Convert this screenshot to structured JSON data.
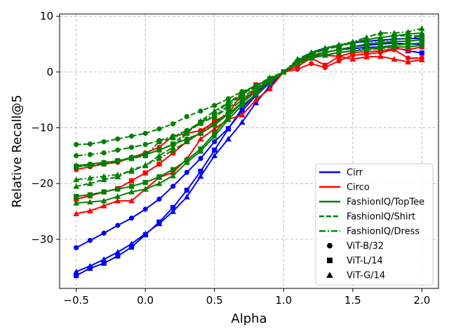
{
  "chart_data": {
    "type": "line",
    "title": "",
    "xlabel": "Alpha",
    "ylabel": "Relative Recall@5",
    "xlim": [
      -0.62,
      2.12
    ],
    "ylim": [
      -38.8,
      10.4
    ],
    "xticks": [
      -0.5,
      0.0,
      0.5,
      1.0,
      1.5,
      2.0
    ],
    "xtick_labels": [
      "−0.5",
      "0.0",
      "0.5",
      "1.0",
      "1.5",
      "2.0"
    ],
    "yticks": [
      -30,
      -20,
      -10,
      0,
      10
    ],
    "ytick_labels": [
      "−30",
      "−20",
      "−10",
      "0",
      "10"
    ],
    "grid": true,
    "legend_position": "lower-right",
    "x": [
      -0.5,
      -0.4,
      -0.3,
      -0.2,
      -0.1,
      0.0,
      0.1,
      0.2,
      0.3,
      0.4,
      0.5,
      0.6,
      0.7,
      0.8,
      0.9,
      1.0,
      1.1,
      1.2,
      1.3,
      1.4,
      1.5,
      1.6,
      1.7,
      1.8,
      1.9,
      2.0
    ],
    "colors": {
      "Cirr": "#0000ff",
      "Circo": "#ff0000",
      "FashionIQ": "#008000"
    },
    "legend": {
      "datasets": [
        {
          "label": "Cirr",
          "color": "#0000ff",
          "dash": "solid"
        },
        {
          "label": "Circo",
          "color": "#ff0000",
          "dash": "solid"
        },
        {
          "label": "FashionIQ/TopTee",
          "color": "#008000",
          "dash": "solid"
        },
        {
          "label": "FashionIQ/Shirt",
          "color": "#008000",
          "dash": "dashed"
        },
        {
          "label": "FashionIQ/Dress",
          "color": "#008000",
          "dash": "dashdot"
        }
      ],
      "models": [
        {
          "label": "ViT-B/32",
          "marker": "circle"
        },
        {
          "label": "ViT-L/14",
          "marker": "square"
        },
        {
          "label": "ViT-G/14",
          "marker": "triangle"
        }
      ]
    },
    "series": [
      {
        "name": "Cirr ViT-B/32",
        "color": "#0000ff",
        "dash": "solid",
        "marker": "circle",
        "values": [
          -31.5,
          -30.2,
          -28.9,
          -27.5,
          -26.2,
          -24.6,
          -22.8,
          -20.5,
          -18.0,
          -15.5,
          -12.5,
          -10.1,
          -7.0,
          -4.2,
          -2.0,
          0.0,
          1.5,
          2.8,
          3.5,
          4.0,
          4.5,
          4.8,
          5.0,
          5.2,
          5.0,
          5.0
        ]
      },
      {
        "name": "Cirr ViT-L/14",
        "color": "#0000ff",
        "dash": "solid",
        "marker": "square",
        "values": [
          -36.5,
          -35.2,
          -34.3,
          -33.0,
          -31.4,
          -29.2,
          -26.9,
          -24.3,
          -21.2,
          -17.8,
          -14.0,
          -10.2,
          -6.5,
          -3.8,
          -1.8,
          0.0,
          1.8,
          3.0,
          3.5,
          4.0,
          4.2,
          4.4,
          4.5,
          4.4,
          3.8,
          3.4
        ]
      },
      {
        "name": "Cirr ViT-G/14",
        "color": "#0000ff",
        "dash": "solid",
        "marker": "triangle",
        "values": [
          -35.8,
          -34.8,
          -33.6,
          -32.3,
          -30.8,
          -29.0,
          -27.2,
          -25.0,
          -22.4,
          -18.7,
          -15.0,
          -12.0,
          -9.0,
          -5.5,
          -2.5,
          0.0,
          2.0,
          3.5,
          4.3,
          4.8,
          5.2,
          5.5,
          5.7,
          5.9,
          6.0,
          6.0
        ]
      },
      {
        "name": "Circo ViT-B/32",
        "color": "#ff0000",
        "dash": "solid",
        "marker": "circle",
        "values": [
          -17.5,
          -17.0,
          -16.5,
          -16.2,
          -15.3,
          -14.5,
          -13.5,
          -11.5,
          -11.0,
          -10.5,
          -9.0,
          -7.5,
          -5.5,
          -3.0,
          -1.5,
          0.0,
          0.5,
          1.5,
          0.8,
          2.0,
          3.0,
          3.2,
          3.5,
          4.0,
          2.5,
          2.5
        ]
      },
      {
        "name": "Circo ViT-L/14",
        "color": "#ff0000",
        "dash": "solid",
        "marker": "square",
        "values": [
          -22.8,
          -22.2,
          -21.5,
          -20.9,
          -19.5,
          -18.1,
          -16.5,
          -14.5,
          -12.5,
          -10.8,
          -8.8,
          -7.5,
          -3.8,
          -2.3,
          -1.5,
          0.0,
          1.0,
          2.5,
          1.2,
          2.8,
          3.5,
          3.6,
          3.8,
          4.2,
          4.0,
          4.5
        ]
      },
      {
        "name": "Circo ViT-G/14",
        "color": "#ff0000",
        "dash": "solid",
        "marker": "triangle",
        "values": [
          -25.4,
          -24.9,
          -24.0,
          -23.1,
          -23.1,
          -21.0,
          -18.9,
          -18.0,
          -15.6,
          -12.0,
          -10.2,
          -8.5,
          -7.7,
          -5.0,
          -3.0,
          0.0,
          1.5,
          2.8,
          3.0,
          2.8,
          2.3,
          2.7,
          2.8,
          2.3,
          1.8,
          2.2
        ]
      },
      {
        "name": "FashionIQ/TopTee ViT-B/32",
        "color": "#008000",
        "dash": "solid",
        "marker": "circle",
        "values": [
          -16.8,
          -16.5,
          -16.2,
          -16.0,
          -15.3,
          -14.8,
          -14.0,
          -13.0,
          -12.0,
          -11.0,
          -9.5,
          -7.5,
          -5.5,
          -3.5,
          -1.5,
          0.0,
          1.5,
          2.5,
          3.0,
          3.5,
          3.8,
          4.0,
          4.5,
          4.8,
          5.0,
          5.2
        ]
      },
      {
        "name": "FashionIQ/TopTee ViT-L/14",
        "color": "#008000",
        "dash": "solid",
        "marker": "square",
        "values": [
          -22.3,
          -22.0,
          -21.5,
          -21.0,
          -20.5,
          -19.8,
          -18.8,
          -17.5,
          -15.8,
          -13.8,
          -11.0,
          -8.0,
          -5.5,
          -3.5,
          -1.5,
          0.0,
          1.8,
          3.0,
          3.5,
          4.0,
          4.5,
          5.0,
          5.2,
          5.5,
          5.5,
          5.8
        ]
      },
      {
        "name": "FashionIQ/TopTee ViT-G/14",
        "color": "#008000",
        "dash": "solid",
        "marker": "triangle",
        "values": [
          -23.5,
          -23.3,
          -23.1,
          -22.3,
          -21.5,
          -21.0,
          -20.0,
          -18.6,
          -16.2,
          -14.2,
          -11.5,
          -8.5,
          -6.0,
          -4.0,
          -2.0,
          0.0,
          2.0,
          3.3,
          4.2,
          4.8,
          5.3,
          5.8,
          6.2,
          6.5,
          6.8,
          7.0
        ]
      },
      {
        "name": "FashionIQ/Shirt ViT-B/32",
        "color": "#008000",
        "dash": "dashed",
        "marker": "circle",
        "values": [
          -13.0,
          -12.9,
          -12.5,
          -12.0,
          -11.5,
          -11.0,
          -10.2,
          -9.3,
          -8.0,
          -7.0,
          -6.0,
          -4.8,
          -3.5,
          -2.5,
          -1.2,
          0.0,
          1.5,
          2.5,
          3.0,
          3.5,
          3.8,
          4.0,
          4.2,
          4.5,
          4.5,
          4.8
        ]
      },
      {
        "name": "FashionIQ/Shirt ViT-L/14",
        "color": "#008000",
        "dash": "dashed",
        "marker": "square",
        "values": [
          -17.0,
          -16.7,
          -16.3,
          -15.9,
          -15.4,
          -14.8,
          -14.0,
          -12.9,
          -10.8,
          -9.2,
          -8.0,
          -6.0,
          -4.0,
          -2.5,
          -1.2,
          0.0,
          1.5,
          2.8,
          3.5,
          4.0,
          4.5,
          5.0,
          5.2,
          5.5,
          5.5,
          5.8
        ]
      },
      {
        "name": "FashionIQ/Shirt ViT-G/14",
        "color": "#008000",
        "dash": "dashed",
        "marker": "triangle",
        "values": [
          -20.5,
          -20.0,
          -19.3,
          -18.8,
          -17.5,
          -16.8,
          -15.0,
          -13.5,
          -11.0,
          -8.8,
          -7.0,
          -5.5,
          -3.8,
          -2.5,
          -1.0,
          0.0,
          2.0,
          3.2,
          4.0,
          4.6,
          5.2,
          5.8,
          6.2,
          6.5,
          6.5,
          6.5
        ]
      },
      {
        "name": "FashionIQ/Dress ViT-B/32",
        "color": "#008000",
        "dash": "dashdot",
        "marker": "circle",
        "values": [
          -15.0,
          -14.8,
          -14.5,
          -14.0,
          -13.5,
          -13.0,
          -12.3,
          -11.5,
          -10.5,
          -9.0,
          -7.5,
          -5.5,
          -4.0,
          -2.8,
          -1.2,
          0.0,
          1.5,
          2.5,
          3.0,
          3.5,
          3.8,
          4.2,
          4.5,
          4.5,
          4.5,
          4.8
        ]
      },
      {
        "name": "FashionIQ/Dress ViT-L/14",
        "color": "#008000",
        "dash": "dashdot",
        "marker": "square",
        "values": [
          -17.0,
          -16.8,
          -16.5,
          -16.0,
          -15.5,
          -15.0,
          -12.5,
          -11.8,
          -10.7,
          -9.0,
          -8.0,
          -6.5,
          -4.5,
          -3.0,
          -1.5,
          0.0,
          1.5,
          2.5,
          3.5,
          4.0,
          4.5,
          5.0,
          5.5,
          5.8,
          6.0,
          6.5
        ]
      },
      {
        "name": "FashionIQ/Dress ViT-G/14",
        "color": "#008000",
        "dash": "dashdot",
        "marker": "triangle",
        "values": [
          -19.3,
          -19.0,
          -18.7,
          -18.4,
          -17.8,
          -16.7,
          -15.5,
          -14.0,
          -12.5,
          -11.0,
          -9.3,
          -7.0,
          -5.0,
          -3.0,
          -1.5,
          0.0,
          2.3,
          3.5,
          4.3,
          4.9,
          5.4,
          6.2,
          7.0,
          7.0,
          7.2,
          7.8
        ]
      }
    ]
  }
}
